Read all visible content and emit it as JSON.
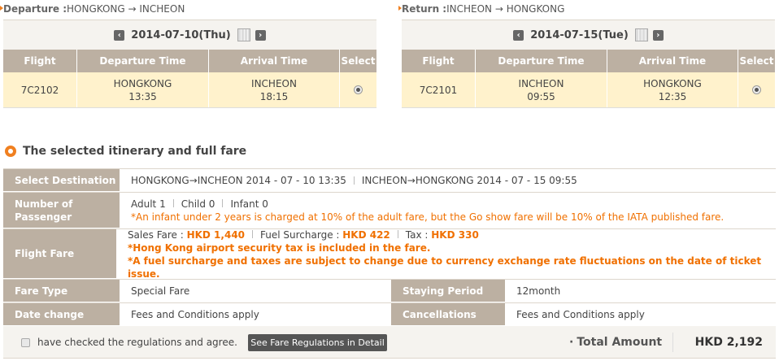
{
  "departure": {
    "label": "Departure :",
    "route": "HONGKONG → INCHEON",
    "date": "2014-07-10(Thu)",
    "headers": [
      "Flight",
      "Departure Time",
      "Arrival Time",
      "Select"
    ],
    "flight": "7C2102",
    "dep_city": "HONGKONG",
    "dep_time": "13:35",
    "arr_city": "INCHEON",
    "arr_time": "18:15",
    "selected": true
  },
  "return": {
    "label": "Return :",
    "route": "INCHEON → HONGKONG",
    "date": "2014-07-15(Tue)",
    "headers": [
      "Flight",
      "Departure Time",
      "Arrival Time",
      "Select"
    ],
    "flight": "7C2101",
    "dep_city": "INCHEON",
    "dep_time": "09:55",
    "arr_city": "HONGKONG",
    "arr_time": "12:35",
    "selected": true
  },
  "summary": {
    "title": "The selected itinerary and full fare",
    "destination_label": "Select Destination",
    "destination_out": "HONGKONG→INCHEON 2014 - 07 - 10 13:35",
    "destination_ret": "INCHEON→HONGKONG 2014 - 07 - 15 09:55",
    "passenger_label": "Number of Passenger",
    "adult": "Adult 1",
    "child": "Child 0",
    "infant": "Infant 0",
    "infant_note": "*An infant under 2 years is charged at 10% of the adult fare, but the Go show fare will be 10% of the IATA published fare.",
    "fare_label": "Flight Fare",
    "sales_fare_label": "Sales Fare : ",
    "sales_fare": "HKD 1,440",
    "fuel_label": "Fuel Surcharge : ",
    "fuel": "HKD 422",
    "tax_label": "Tax : ",
    "tax": "HKD 330",
    "note1": "*Hong Kong airport security tax is included in the fare.",
    "note2": "*A fuel surcharge and taxes are subject to change due to currency exchange rate fluctuations on the date of ticket issue.",
    "fare_type_label": "Fare Type",
    "fare_type": "Special Fare",
    "staying_label": "Staying Period",
    "staying": "12month",
    "date_change_label": "Date change",
    "date_change": "Fees and Conditions apply",
    "cancel_label": "Cancellations",
    "cancel": "Fees and Conditions apply"
  },
  "footer": {
    "agree_label": "have checked the regulations and agree.",
    "agree_checked": false,
    "regulations_button": "See Fare Regulations in Detail",
    "total_label": "Total Amount",
    "total": "HKD 2,192"
  },
  "colors": {
    "accent": "#f07000",
    "header_bg": "#bcb0a2",
    "row_bg": "#fff2cc"
  }
}
